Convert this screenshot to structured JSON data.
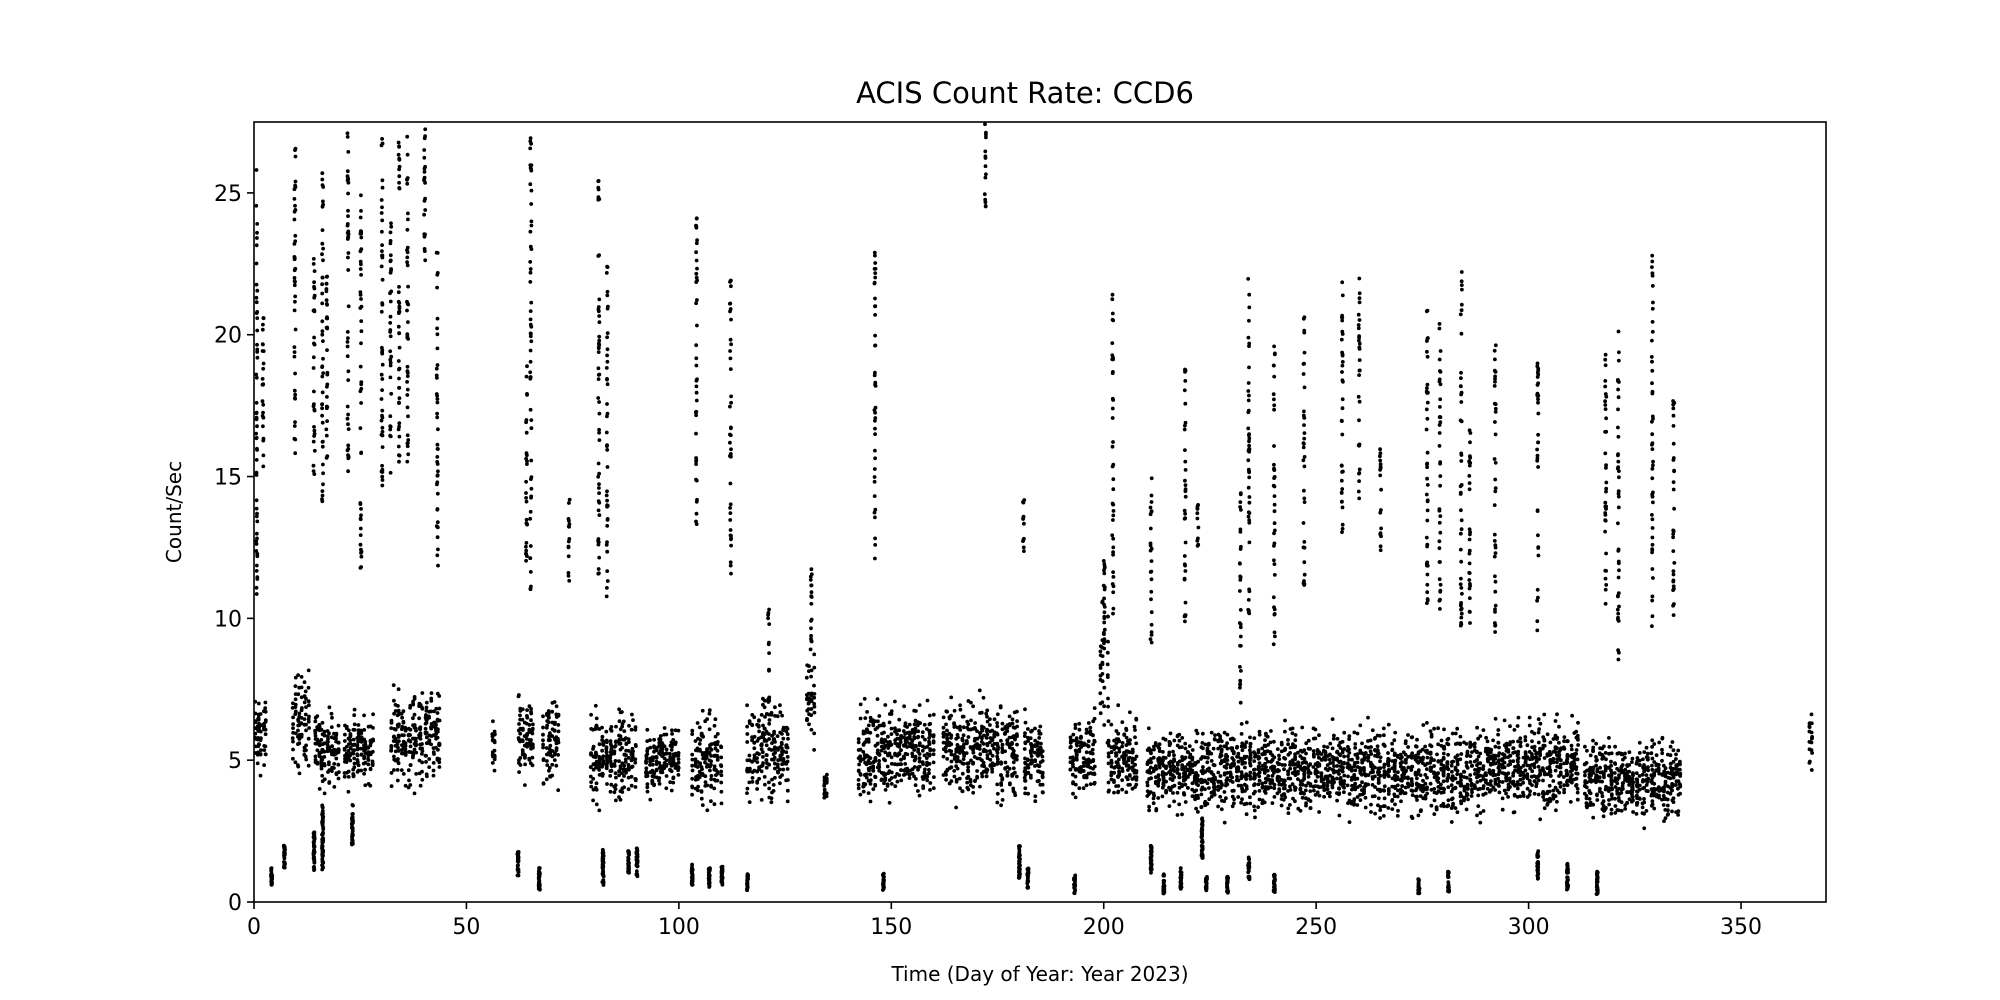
{
  "chart_data": {
    "type": "scatter",
    "title": "ACIS Count Rate: CCD6",
    "xlabel": "Time (Day of Year: Year 2023)",
    "ylabel": "Count/Sec",
    "xlim": [
      0,
      370
    ],
    "ylim": [
      0,
      27.5
    ],
    "xticks": [
      0,
      50,
      100,
      150,
      200,
      250,
      300,
      350
    ],
    "yticks": [
      0,
      5,
      10,
      15,
      20,
      25
    ],
    "grid": false,
    "marker_color": "#000000",
    "note_points": "approximate: dense vertical clusters of points, given as [day_start, day_end, count_min, count_max]",
    "main_band": [
      [
        0,
        3,
        4.2,
        7.5
      ],
      [
        9,
        13,
        4.2,
        8.5
      ],
      [
        14,
        20,
        3.8,
        7.0
      ],
      [
        21,
        28,
        3.8,
        7.0
      ],
      [
        32,
        44,
        3.6,
        7.8
      ],
      [
        56,
        57,
        3.9,
        7.0
      ],
      [
        62,
        66,
        3.8,
        7.6
      ],
      [
        68,
        72,
        3.8,
        7.5
      ],
      [
        79,
        90,
        3.2,
        7.0
      ],
      [
        92,
        100,
        3.5,
        6.5
      ],
      [
        103,
        110,
        3.0,
        7.0
      ],
      [
        116,
        126,
        3.2,
        7.5
      ],
      [
        130,
        132,
        5.0,
        9.0
      ],
      [
        134,
        135,
        3.5,
        5.0
      ],
      [
        142,
        160,
        3.3,
        7.3
      ],
      [
        162,
        180,
        3.3,
        7.5
      ],
      [
        181,
        186,
        3.2,
        7.0
      ],
      [
        192,
        198,
        3.5,
        7.0
      ],
      [
        199,
        201,
        5.0,
        12.0
      ],
      [
        201,
        208,
        3.2,
        7.0
      ],
      [
        210,
        232,
        2.8,
        6.5
      ],
      [
        232,
        246,
        2.8,
        6.5
      ],
      [
        246,
        260,
        2.8,
        6.5
      ],
      [
        260,
        282,
        2.7,
        6.5
      ],
      [
        282,
        300,
        2.8,
        6.5
      ],
      [
        300,
        312,
        2.9,
        6.8
      ],
      [
        313,
        336,
        2.6,
        6.0
      ],
      [
        366,
        366,
        4.2,
        7.0
      ]
    ],
    "high_strips": [
      [
        0.5,
        10,
        26
      ],
      [
        2,
        15,
        21
      ],
      [
        9.5,
        15.5,
        27
      ],
      [
        14,
        15,
        23
      ],
      [
        16,
        14,
        26
      ],
      [
        17,
        15.5,
        23
      ],
      [
        22,
        15,
        27.5
      ],
      [
        25,
        11.5,
        25
      ],
      [
        30,
        14.5,
        27.5
      ],
      [
        32,
        15,
        24
      ],
      [
        34,
        15,
        27
      ],
      [
        36,
        15.5,
        27
      ],
      [
        40,
        22,
        27.5
      ],
      [
        43,
        11.5,
        23
      ],
      [
        64,
        12,
        19
      ],
      [
        65,
        11,
        27
      ],
      [
        74,
        11.3,
        14.3
      ],
      [
        81,
        10.7,
        25.5
      ],
      [
        83,
        10.7,
        22.5
      ],
      [
        104,
        12.5,
        24.3
      ],
      [
        112,
        11.3,
        22.8
      ],
      [
        121,
        7,
        10.5
      ],
      [
        131,
        8,
        12.3
      ],
      [
        146,
        12,
        23.3
      ],
      [
        172,
        24.5,
        27.5
      ],
      [
        181,
        12.3,
        14.4
      ],
      [
        200,
        9,
        12.6
      ],
      [
        202,
        10,
        21.5
      ],
      [
        211,
        9,
        15
      ],
      [
        219,
        9.8,
        19.4
      ],
      [
        222,
        12.5,
        14
      ],
      [
        232,
        7,
        14.5
      ],
      [
        234,
        10,
        23.4
      ],
      [
        240,
        9,
        19.7
      ],
      [
        247,
        11,
        20.7
      ],
      [
        256,
        12,
        22
      ],
      [
        260,
        14,
        22
      ],
      [
        265,
        12,
        16
      ],
      [
        276,
        9.7,
        21
      ],
      [
        279,
        9.8,
        20.5
      ],
      [
        284,
        9.5,
        22.3
      ],
      [
        286,
        9.5,
        17
      ],
      [
        292,
        9.5,
        19.7
      ],
      [
        302,
        9.4,
        19
      ],
      [
        318,
        9.5,
        19.5
      ],
      [
        321,
        8.5,
        20.3
      ],
      [
        329,
        9.5,
        22.8
      ],
      [
        334,
        9.7,
        17.8
      ]
    ],
    "low_strips": [
      [
        4,
        0.6,
        1.2
      ],
      [
        7,
        1.2,
        2.0
      ],
      [
        14,
        1.1,
        2.5
      ],
      [
        16,
        1.1,
        3.5
      ],
      [
        23,
        2.0,
        3.5
      ],
      [
        62,
        0.9,
        1.8
      ],
      [
        67,
        0.4,
        1.2
      ],
      [
        82,
        0.5,
        1.9
      ],
      [
        88,
        1.0,
        1.8
      ],
      [
        90,
        0.9,
        1.9
      ],
      [
        103,
        0.6,
        1.4
      ],
      [
        107,
        0.5,
        1.2
      ],
      [
        110,
        0.6,
        1.3
      ],
      [
        116,
        0.4,
        1.0
      ],
      [
        148,
        0.4,
        1.0
      ],
      [
        180,
        0.8,
        2.0
      ],
      [
        182,
        0.4,
        1.2
      ],
      [
        193,
        0.3,
        1.0
      ],
      [
        211,
        1.0,
        2.0
      ],
      [
        214,
        0.3,
        1.0
      ],
      [
        218,
        0.4,
        1.2
      ],
      [
        223,
        1.5,
        3.0
      ],
      [
        224,
        0.4,
        0.9
      ],
      [
        229,
        0.3,
        0.9
      ],
      [
        234,
        0.8,
        1.6
      ],
      [
        240,
        0.3,
        1.0
      ],
      [
        274,
        0.3,
        0.9
      ],
      [
        281,
        0.3,
        1.1
      ],
      [
        302,
        0.8,
        1.8
      ],
      [
        309,
        0.4,
        1.4
      ],
      [
        316,
        0.2,
        1.1
      ]
    ]
  }
}
